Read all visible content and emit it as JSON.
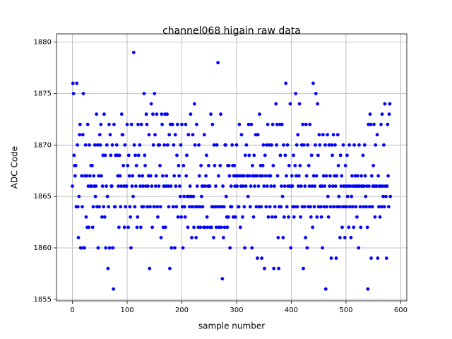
{
  "chart_data": {
    "type": "scatter",
    "title": "channel068 higain raw data",
    "x_label": "sample number",
    "y_label": "ADC Code",
    "color": "#0000ff",
    "grid": true,
    "xlim": [
      -29.1,
      611.1
    ],
    "ylim": [
      1854.85,
      1880.8
    ],
    "xticks": [
      0,
      100,
      200,
      300,
      400,
      500,
      600
    ],
    "yticks": [
      1855,
      1860,
      1865,
      1870,
      1875,
      1880
    ],
    "x": [
      0,
      1,
      2,
      3,
      4,
      5,
      6,
      7,
      8,
      9,
      10,
      11,
      12,
      13,
      14,
      15,
      16,
      17,
      18,
      19,
      20,
      21,
      22,
      23,
      24,
      25,
      26,
      27,
      28,
      29,
      30,
      31,
      32,
      33,
      34,
      35,
      36,
      37,
      38,
      39,
      40,
      41,
      42,
      43,
      44,
      45,
      46,
      47,
      48,
      49,
      50,
      51,
      52,
      53,
      54,
      55,
      56,
      57,
      58,
      59,
      60,
      61,
      62,
      63,
      64,
      65,
      66,
      67,
      68,
      69,
      70,
      71,
      72,
      73,
      74,
      75,
      76,
      77,
      78,
      79,
      80,
      81,
      82,
      83,
      84,
      85,
      86,
      87,
      88,
      89,
      90,
      91,
      92,
      93,
      94,
      95,
      96,
      97,
      98,
      99,
      100,
      101,
      102,
      103,
      104,
      105,
      106,
      107,
      108,
      109,
      110,
      111,
      112,
      113,
      114,
      115,
      116,
      117,
      118,
      119,
      120,
      121,
      122,
      123,
      124,
      125,
      126,
      127,
      128,
      129,
      130,
      131,
      132,
      133,
      134,
      135,
      136,
      137,
      138,
      139,
      140,
      141,
      142,
      143,
      144,
      145,
      146,
      147,
      148,
      149,
      150,
      151,
      152,
      153,
      154,
      155,
      156,
      157,
      158,
      159,
      160,
      161,
      162,
      163,
      164,
      165,
      166,
      167,
      168,
      169,
      170,
      171,
      172,
      173,
      174,
      175,
      176,
      177,
      178,
      179,
      180,
      181,
      182,
      183,
      184,
      185,
      186,
      187,
      188,
      189,
      190,
      191,
      192,
      193,
      194,
      195,
      196,
      197,
      198,
      199,
      200,
      201,
      202,
      203,
      204,
      205,
      206,
      207,
      208,
      209,
      210,
      211,
      212,
      213,
      214,
      215,
      216,
      217,
      218,
      219,
      220,
      221,
      222,
      223,
      224,
      225,
      226,
      227,
      228,
      229,
      230,
      231,
      232,
      233,
      234,
      235,
      236,
      237,
      238,
      239,
      240,
      241,
      242,
      243,
      244,
      245,
      246,
      247,
      248,
      249,
      250,
      251,
      252,
      253,
      254,
      255,
      256,
      257,
      258,
      259,
      260,
      261,
      262,
      263,
      264,
      265,
      266,
      267,
      268,
      269,
      270,
      271,
      272,
      273,
      274,
      275,
      276,
      277,
      278,
      279,
      280,
      281,
      282,
      283,
      284,
      285,
      286,
      287,
      288,
      289,
      290,
      291,
      292,
      293,
      294,
      295,
      296,
      297,
      298,
      299,
      300,
      301,
      302,
      303,
      304,
      305,
      306,
      307,
      308,
      309,
      310,
      311,
      312,
      313,
      314,
      315,
      316,
      317,
      318,
      319,
      320,
      321,
      322,
      323,
      324,
      325,
      326,
      327,
      328,
      329,
      330,
      331,
      332,
      333,
      334,
      335,
      336,
      337,
      338,
      339,
      340,
      341,
      342,
      343,
      344,
      345,
      346,
      347,
      348,
      349,
      350,
      351,
      352,
      353,
      354,
      355,
      356,
      357,
      358,
      359,
      360,
      361,
      362,
      363,
      364,
      365,
      366,
      367,
      368,
      369,
      370,
      371,
      372,
      373,
      374,
      375,
      376,
      377,
      378,
      379,
      380,
      381,
      382,
      383,
      384,
      385,
      386,
      387,
      388,
      389,
      390,
      391,
      392,
      393,
      394,
      395,
      396,
      397,
      398,
      399,
      400,
      401,
      402,
      403,
      404,
      405,
      406,
      407,
      408,
      409,
      410,
      411,
      412,
      413,
      414,
      415,
      416,
      417,
      418,
      419,
      420,
      421,
      422,
      423,
      424,
      425,
      426,
      427,
      428,
      429,
      430,
      431,
      432,
      433,
      434,
      435,
      436,
      437,
      438,
      439,
      440,
      441,
      442,
      443,
      444,
      445,
      446,
      447,
      448,
      449,
      450,
      451,
      452,
      453,
      454,
      455,
      456,
      457,
      458,
      459,
      460,
      461,
      462,
      463,
      464,
      465,
      466,
      467,
      468,
      469,
      470,
      471,
      472,
      473,
      474,
      475,
      476,
      477,
      478,
      479,
      480,
      481,
      482,
      483,
      484,
      485,
      486,
      487,
      488,
      489,
      490,
      491,
      492,
      493,
      494,
      495,
      496,
      497,
      498,
      499,
      500,
      501,
      502,
      503,
      504,
      505,
      506,
      507,
      508,
      509,
      510,
      511,
      512,
      513,
      514,
      515,
      516,
      517,
      518,
      519,
      520,
      521,
      522,
      523,
      524,
      525,
      526,
      527,
      528,
      529,
      530,
      531,
      532,
      533,
      534,
      535,
      536,
      537,
      538,
      539,
      540,
      541,
      542,
      543,
      544,
      545,
      546,
      547,
      548,
      549,
      550,
      551,
      552,
      553,
      554,
      555,
      556,
      557,
      558,
      559,
      560,
      561,
      562,
      563,
      564,
      565,
      566,
      567,
      568,
      569,
      570,
      571,
      572,
      573,
      574,
      575,
      576,
      577,
      578,
      579,
      580,
      581
    ],
    "values": [
      1866,
      1876,
      1875,
      1869,
      1868,
      1867,
      1868,
      1864,
      1876,
      1870,
      1864,
      1861,
      1865,
      1871,
      1872,
      1860,
      1860,
      1867,
      1864,
      1871,
      1875,
      1860,
      1860,
      1867,
      1870,
      1863,
      1867,
      1862,
      1872,
      1866,
      1862,
      1870,
      1867,
      1866,
      1868,
      1866,
      1868,
      1862,
      1864,
      1867,
      1866,
      1870,
      1865,
      1866,
      1873,
      1864,
      1870,
      1860,
      1867,
      1864,
      1871,
      1870,
      1872,
      1867,
      1863,
      1866,
      1869,
      1864,
      1873,
      1863,
      1869,
      1860,
      1866,
      1870,
      1865,
      1858,
      1864,
      1872,
      1860,
      1871,
      1869,
      1866,
      1866,
      1870,
      1860,
      1856,
      1872,
      1864,
      1864,
      1869,
      1869,
      1870,
      1869,
      1867,
      1866,
      1862,
      1869,
      1867,
      1864,
      1866,
      1873,
      1871,
      1871,
      1868,
      1866,
      1862,
      1870,
      1864,
      1866,
      1866,
      1872,
      1868,
      1862,
      1869,
      1867,
      1864,
      1863,
      1860,
      1872,
      1866,
      1867,
      1865,
      1879,
      1870,
      1864,
      1869,
      1866,
      1868,
      1862,
      1863,
      1872,
      1869,
      1867,
      1870,
      1866,
      1862,
      1872,
      1864,
      1867,
      1866,
      1864,
      1875,
      1869,
      1868,
      1866,
      1873,
      1872,
      1864,
      1866,
      1867,
      1871,
      1858,
      1864,
      1867,
      1874,
      1866,
      1862,
      1873,
      1870,
      1864,
      1875,
      1871,
      1866,
      1867,
      1873,
      1864,
      1863,
      1870,
      1866,
      1870,
      1868,
      1864,
      1861,
      1873,
      1872,
      1867,
      1862,
      1866,
      1870,
      1873,
      1862,
      1866,
      1867,
      1873,
      1870,
      1866,
      1864,
      1871,
      1858,
      1872,
      1866,
      1860,
      1872,
      1872,
      1864,
      1870,
      1867,
      1860,
      1871,
      1866,
      1864,
      1869,
      1872,
      1863,
      1868,
      1867,
      1866,
      1865,
      1870,
      1863,
      1872,
      1864,
      1860,
      1868,
      1865,
      1864,
      1863,
      1872,
      1867,
      1869,
      1865,
      1862,
      1871,
      1865,
      1864,
      1866,
      1873,
      1865,
      1861,
      1864,
      1871,
      1865,
      1862,
      1874,
      1870,
      1864,
      1861,
      1872,
      1866,
      1864,
      1862,
      1870,
      1867,
      1864,
      1862,
      1868,
      1865,
      1866,
      1864,
      1866,
      1862,
      1871,
      1862,
      1866,
      1867,
      1869,
      1863,
      1862,
      1866,
      1868,
      1866,
      1866,
      1862,
      1873,
      1862,
      1864,
      1872,
      1864,
      1861,
      1870,
      1868,
      1864,
      1866,
      1862,
      1870,
      1864,
      1878,
      1867,
      1862,
      1864,
      1868,
      1873,
      1862,
      1864,
      1857,
      1866,
      1861,
      1864,
      1862,
      1870,
      1870,
      1865,
      1863,
      1862,
      1868,
      1863,
      1868,
      1867,
      1860,
      1864,
      1866,
      1864,
      1870,
      1868,
      1863,
      1867,
      1868,
      1866,
      1863,
      1867,
      1870,
      1866,
      1867,
      1864,
      1864,
      1872,
      1867,
      1862,
      1866,
      1871,
      1867,
      1863,
      1866,
      1867,
      1864,
      1860,
      1869,
      1866,
      1870,
      1867,
      1867,
      1865,
      1872,
      1869,
      1867,
      1864,
      1866,
      1872,
      1860,
      1868,
      1867,
      1863,
      1869,
      1866,
      1867,
      1871,
      1864,
      1867,
      1859,
      1871,
      1866,
      1864,
      1873,
      1867,
      1868,
      1864,
      1859,
      1867,
      1868,
      1870,
      1866,
      1858,
      1869,
      1867,
      1864,
      1870,
      1866,
      1872,
      1863,
      1867,
      1870,
      1864,
      1867,
      1866,
      1870,
      1863,
      1872,
      1868,
      1858,
      1866,
      1864,
      1863,
      1874,
      1870,
      1872,
      1867,
      1861,
      1858,
      1864,
      1872,
      1869,
      1864,
      1866,
      1872,
      1865,
      1861,
      1870,
      1863,
      1866,
      1869,
      1876,
      1867,
      1864,
      1870,
      1866,
      1863,
      1868,
      1866,
      1874,
      1860,
      1866,
      1867,
      1866,
      1864,
      1869,
      1863,
      1864,
      1868,
      1875,
      1867,
      1870,
      1864,
      1871,
      1866,
      1867,
      1874,
      1868,
      1863,
      1866,
      1870,
      1864,
      1872,
      1858,
      1870,
      1864,
      1866,
      1861,
      1872,
      1867,
      1860,
      1870,
      1864,
      1868,
      1866,
      1872,
      1864,
      1863,
      1869,
      1866,
      1862,
      1876,
      1867,
      1864,
      1866,
      1870,
      1875,
      1867,
      1863,
      1874,
      1869,
      1864,
      1871,
      1870,
      1866,
      1864,
      1863,
      1866,
      1860,
      1871,
      1867,
      1864,
      1866,
      1870,
      1856,
      1867,
      1864,
      1871,
      1865,
      1863,
      1870,
      1866,
      1867,
      1864,
      1859,
      1870,
      1869,
      1866,
      1871,
      1864,
      1867,
      1870,
      1866,
      1859,
      1867,
      1864,
      1871,
      1868,
      1865,
      1864,
      1861,
      1869,
      1866,
      1867,
      1862,
      1864,
      1870,
      1866,
      1864,
      1861,
      1868,
      1866,
      1864,
      1869,
      1865,
      1866,
      1862,
      1870,
      1864,
      1866,
      1861,
      1865,
      1867,
      1864,
      1866,
      1862,
      1870,
      1866,
      1867,
      1864,
      1866,
      1863,
      1867,
      1866,
      1860,
      1870,
      1866,
      1864,
      1862,
      1867,
      1866,
      1866,
      1869,
      1864,
      1866,
      1870,
      1867,
      1865,
      1864,
      1866,
      1862,
      1856,
      1872,
      1866,
      1864,
      1873,
      1872,
      1859,
      1867,
      1864,
      1866,
      1868,
      1872,
      1866,
      1863,
      1870,
      1866,
      1866,
      1871,
      1859,
      1867,
      1864,
      1866,
      1863,
      1866,
      1872,
      1864,
      1873,
      1866,
      1865,
      1870,
      1864,
      1874,
      1866,
      1865,
      1859,
      1866,
      1872,
      1867,
      1864,
      1873,
      1874,
      1865
    ]
  }
}
